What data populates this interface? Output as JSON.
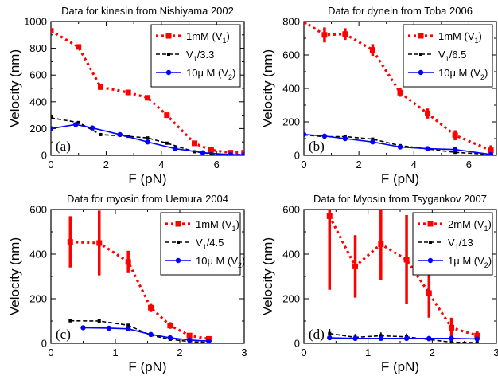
{
  "chart_data": [
    {
      "type": "line",
      "title": "Data for kinesin from Nishiyama 2002",
      "xlabel": "F (pN)",
      "ylabel": "Velocity (nm)",
      "panel_label": "(a)",
      "xlim": [
        0,
        7
      ],
      "ylim": [
        0,
        1000
      ],
      "xticks": [
        0,
        2,
        4,
        6
      ],
      "yticks": [
        0,
        200,
        400,
        600,
        800,
        1000
      ],
      "legend_position": "top-right",
      "series": [
        {
          "name": "1mM (V1)",
          "name_main": "1mM (V",
          "name_sub": "1",
          "name_tail": ")",
          "color": "#ff0000",
          "style": "dotted-square",
          "x": [
            0,
            1,
            1.8,
            2.8,
            3.5,
            4.2,
            5.2,
            5.8,
            6.5,
            7.0
          ],
          "y": [
            930,
            810,
            510,
            470,
            430,
            300,
            90,
            40,
            20,
            20
          ],
          "err": [
            10,
            10,
            10,
            10,
            10,
            10,
            10,
            10,
            10,
            10
          ]
        },
        {
          "name": "V1/3.3",
          "name_main": "V",
          "name_sub": "1",
          "name_tail": "/3.3",
          "color": "#000000",
          "style": "dashed-square",
          "x": [
            0,
            1,
            1.8,
            2.8,
            3.5,
            4.2,
            5.2,
            5.8,
            6.5,
            7.0
          ],
          "y": [
            280,
            245,
            155,
            142,
            130,
            91,
            27,
            12,
            6,
            6
          ]
        },
        {
          "name": "10μ M (V2)",
          "name_main": "10μ M (V",
          "name_sub": "2",
          "name_tail": ")",
          "color": "#0000ff",
          "style": "solid-circle",
          "x": [
            0,
            0.9,
            1.5,
            2.5,
            3.5,
            4.5,
            5.5,
            6.5,
            7.0
          ],
          "y": [
            200,
            230,
            205,
            155,
            100,
            50,
            20,
            5,
            5
          ]
        }
      ]
    },
    {
      "type": "line",
      "title": "Data for dynein from Toba 2006",
      "xlabel": "F (pN)",
      "ylabel": "Velocity (nm)",
      "panel_label": "(b)",
      "xlim": [
        0,
        7
      ],
      "ylim": [
        0,
        800
      ],
      "xticks": [
        0,
        2,
        4,
        6
      ],
      "yticks": [
        0,
        200,
        400,
        600,
        800
      ],
      "legend_position": "top-right",
      "series": [
        {
          "name": "1mM (V1)",
          "name_main": "1mM (V",
          "name_sub": "1",
          "name_tail": ")",
          "color": "#ff0000",
          "style": "dotted-square",
          "x": [
            0,
            0.75,
            1.5,
            2.5,
            3.5,
            4.5,
            5.5,
            6.8
          ],
          "y": [
            800,
            720,
            725,
            630,
            375,
            250,
            120,
            30
          ],
          "err": [
            10,
            45,
            35,
            35,
            25,
            30,
            30,
            30
          ]
        },
        {
          "name": "V1/6.5",
          "name_main": "V",
          "name_sub": "1",
          "name_tail": "/6.5",
          "color": "#000000",
          "style": "dashed-square",
          "x": [
            0,
            0.75,
            1.5,
            2.5,
            3.5,
            4.5,
            5.5,
            6.8
          ],
          "y": [
            123,
            111,
            112,
            97,
            58,
            38,
            18,
            5
          ]
        },
        {
          "name": "10μ M (V2)",
          "name_main": "10μ M (V",
          "name_sub": "2",
          "name_tail": ")",
          "color": "#0000ff",
          "style": "solid-circle",
          "x": [
            0,
            0.75,
            1.5,
            2.5,
            3.5,
            4.5,
            5.5,
            6.8
          ],
          "y": [
            125,
            115,
            100,
            80,
            50,
            40,
            35,
            5
          ]
        }
      ]
    },
    {
      "type": "line",
      "title": "Data for myosin from Uemura 2004",
      "xlabel": "F (pN)",
      "ylabel": "Velocity (nm)",
      "panel_label": "(c)",
      "xlim": [
        0,
        3
      ],
      "ylim": [
        0,
        600
      ],
      "xticks": [
        0,
        1,
        2,
        3
      ],
      "yticks": [
        0,
        200,
        400,
        600
      ],
      "legend_position": "top-right",
      "series": [
        {
          "name": "1mM (V1)",
          "name_main": "1mM (V",
          "name_sub": "1",
          "name_tail": ")",
          "color": "#ff0000",
          "style": "dotted-square",
          "x": [
            0.3,
            0.75,
            1.2,
            1.55,
            1.85,
            2.15,
            2.45
          ],
          "y": [
            455,
            450,
            365,
            160,
            80,
            35,
            20
          ],
          "err": [
            115,
            145,
            50,
            20,
            15,
            8,
            5
          ]
        },
        {
          "name": "V1/4.5",
          "name_main": "V",
          "name_sub": "1",
          "name_tail": "/4.5",
          "color": "#000000",
          "style": "dashed-square",
          "x": [
            0.3,
            0.75,
            1.2,
            1.55,
            1.85,
            2.15,
            2.45
          ],
          "y": [
            101,
            100,
            81,
            36,
            18,
            8,
            4
          ]
        },
        {
          "name": "10μ M (V2)",
          "name_main": "10μ M (V",
          "name_sub": "2",
          "name_tail": ")",
          "color": "#0000ff",
          "style": "solid-circle",
          "x": [
            0.5,
            0.9,
            1.2,
            1.55,
            1.85,
            2.15,
            2.45
          ],
          "y": [
            70,
            68,
            65,
            40,
            25,
            15,
            10
          ]
        }
      ]
    },
    {
      "type": "line",
      "title": "Data for Myosin from Tsygankov 2007",
      "xlabel": "F (pN)",
      "ylabel": "Velocity (nm)",
      "panel_label": "(d)",
      "xlim": [
        0,
        3
      ],
      "ylim": [
        0,
        600
      ],
      "xticks": [
        0,
        1,
        2,
        3
      ],
      "yticks": [
        0,
        200,
        400,
        600
      ],
      "legend_position": "top-right",
      "series": [
        {
          "name": "2mM (V1)",
          "name_main": "2mM (V",
          "name_sub": "1",
          "name_tail": ")",
          "color": "#ff0000",
          "style": "dotted-square",
          "x": [
            0.4,
            0.8,
            1.2,
            1.6,
            1.95,
            2.3,
            2.7
          ],
          "y": [
            570,
            345,
            445,
            375,
            225,
            70,
            35
          ],
          "err": [
            330,
            140,
            160,
            200,
            110,
            45,
            20
          ]
        },
        {
          "name": "V1/13",
          "name_main": "V",
          "name_sub": "1",
          "name_tail": "/13",
          "color": "#000000",
          "style": "dashed-square",
          "x": [
            0.4,
            0.8,
            1.2,
            1.6,
            1.95,
            2.3,
            2.7
          ],
          "y": [
            44,
            27,
            34,
            29,
            17,
            5,
            3
          ],
          "err": [
            20,
            15,
            15,
            15,
            5,
            5,
            3
          ]
        },
        {
          "name": "1μ M (V2)",
          "name_main": "1μ M (V",
          "name_sub": "2",
          "name_tail": ")",
          "color": "#0000ff",
          "style": "solid-circle",
          "x": [
            0.4,
            0.8,
            1.2,
            1.6,
            1.95,
            2.3,
            2.7
          ],
          "y": [
            25,
            22,
            22,
            22,
            22,
            22,
            20
          ]
        }
      ]
    }
  ]
}
